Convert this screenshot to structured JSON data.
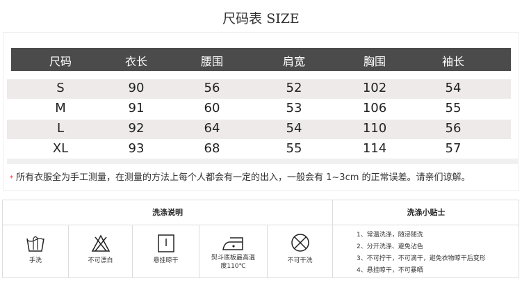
{
  "title": "尺码表 SIZE",
  "size_table": {
    "headers": [
      "尺码",
      "衣长",
      "腰围",
      "肩宽",
      "胸围",
      "袖长"
    ],
    "rows": [
      [
        "S",
        "90",
        "56",
        "52",
        "102",
        "54"
      ],
      [
        "M",
        "91",
        "60",
        "53",
        "106",
        "55"
      ],
      [
        "L",
        "92",
        "64",
        "54",
        "110",
        "56"
      ],
      [
        "XL",
        "93",
        "68",
        "55",
        "114",
        "57"
      ]
    ]
  },
  "note": {
    "marker": "*",
    "text": "所有衣服全为手工测量，在测量的方法上每个人都会有一定的出入，一般会有 1~3cm 的正常误差。请亲们谅解。"
  },
  "care": {
    "instructions_title": "洗涤说明",
    "tips_title": "洗涤小贴士",
    "symbols": [
      {
        "icon": "hand-wash-icon",
        "label": "手洗"
      },
      {
        "icon": "no-bleach-icon",
        "label": "不可漂白"
      },
      {
        "icon": "hang-dry-icon",
        "label": "悬挂晾干"
      },
      {
        "icon": "iron-icon",
        "label": "熨斗底板最高温度110℃"
      },
      {
        "icon": "no-dry-clean-icon",
        "label": "不可干洗"
      }
    ],
    "tips": [
      "1、常温洗涤，随浸随洗",
      "2、分开洗涤、避免沾色",
      "3、不可拧干，不可滴干，避免衣物晾干后变形",
      "4、悬挂晾干，不可暴晒"
    ]
  },
  "colors": {
    "header_bg": "#4b4b4b",
    "row_shade": "#eeeaea",
    "star": "#ee3333"
  }
}
